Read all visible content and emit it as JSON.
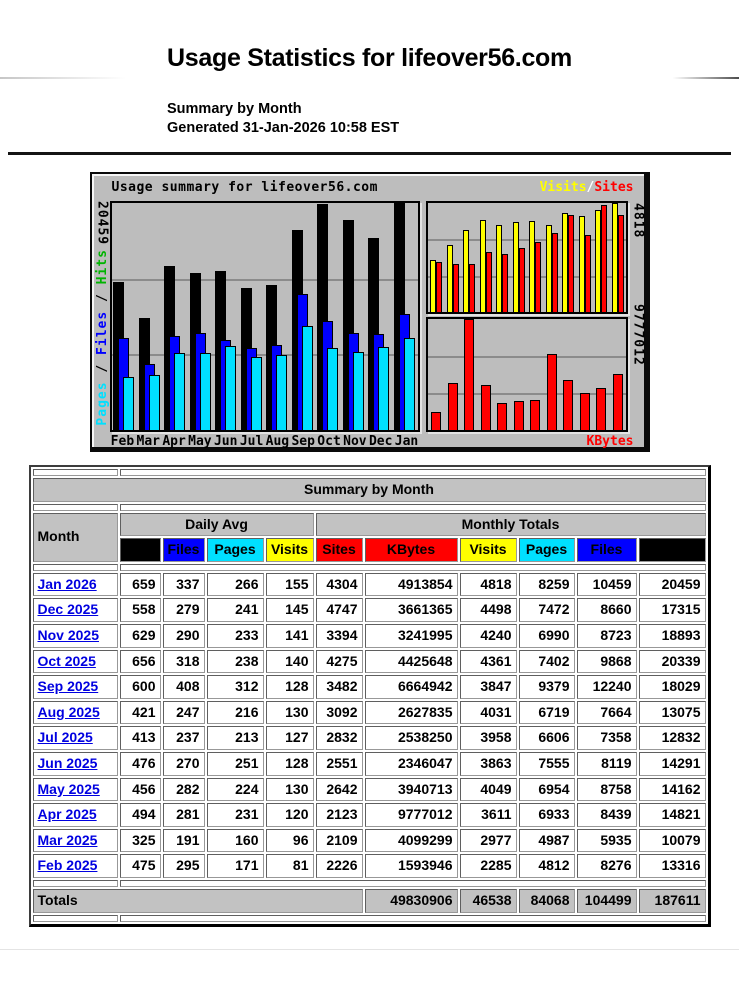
{
  "page": {
    "title": "Usage Statistics for lifeover56.com",
    "summary_line": "Summary by Month",
    "generated_line": "Generated 31-Jan-2026 10:58 EST"
  },
  "chart": {
    "title": "Usage summary for lifeover56.com",
    "legend": {
      "visits": "Visits",
      "separator": "/",
      "sites": "Sites"
    },
    "kbytes_label": "KBytes",
    "left_axis_max": "20459",
    "right_axis_top_max": "4818",
    "right_axis_bottom_max": "9777012",
    "left_axis_label_parts": {
      "pages": "Pages",
      "sep1": " / ",
      "files": "Files",
      "sep2": " / ",
      "hits": "Hits"
    },
    "colors": {
      "hits": "#000000",
      "files": "#0000ff",
      "pages": "#00e0ff",
      "visits": "#ffff00",
      "sites": "#ff0000",
      "kbytes": "#ff0000",
      "title": "#0000ff",
      "hits_label": "#00b400",
      "pages_label": "#00e0ff",
      "files_label": "#0000ff",
      "background": "#bdbdbd"
    }
  },
  "chart_data": [
    {
      "type": "bar",
      "title": "Usage summary for lifeover56.com",
      "categories": [
        "Feb",
        "Mar",
        "Apr",
        "May",
        "Jun",
        "Jul",
        "Aug",
        "Sep",
        "Oct",
        "Nov",
        "Dec",
        "Jan"
      ],
      "series": [
        {
          "name": "Hits",
          "color": "#000000",
          "values": [
            13316,
            10079,
            14821,
            14162,
            14291,
            12832,
            13075,
            18029,
            20339,
            18893,
            17315,
            20459
          ]
        },
        {
          "name": "Files",
          "color": "#0000ff",
          "values": [
            8276,
            5935,
            8439,
            8758,
            8119,
            7358,
            7664,
            12240,
            9868,
            8723,
            8660,
            10459
          ]
        },
        {
          "name": "Pages",
          "color": "#00e0ff",
          "values": [
            4812,
            4987,
            6933,
            6954,
            7555,
            6606,
            6719,
            9379,
            7402,
            6990,
            7472,
            8259
          ]
        }
      ],
      "ylabel": "Pages / Files / Hits",
      "ylim": [
        0,
        20459
      ],
      "legend_position": "left",
      "grid": true
    },
    {
      "type": "bar",
      "title": "Visits / Sites",
      "categories": [
        "Feb",
        "Mar",
        "Apr",
        "May",
        "Jun",
        "Jul",
        "Aug",
        "Sep",
        "Oct",
        "Nov",
        "Dec",
        "Jan"
      ],
      "series": [
        {
          "name": "Visits",
          "color": "#ffff00",
          "values": [
            2285,
            2977,
            3611,
            4049,
            3863,
            3958,
            4031,
            3847,
            4361,
            4240,
            4498,
            4818
          ]
        },
        {
          "name": "Sites",
          "color": "#ff0000",
          "values": [
            2226,
            2109,
            2123,
            2642,
            2551,
            2832,
            3092,
            3482,
            4275,
            3394,
            4747,
            4304
          ]
        }
      ],
      "ylim": [
        0,
        4818
      ],
      "legend_position": "top-right",
      "grid": true
    },
    {
      "type": "bar",
      "title": "KBytes",
      "categories": [
        "Feb",
        "Mar",
        "Apr",
        "May",
        "Jun",
        "Jul",
        "Aug",
        "Sep",
        "Oct",
        "Nov",
        "Dec",
        "Jan"
      ],
      "series": [
        {
          "name": "KBytes",
          "color": "#ff0000",
          "values": [
            1593946,
            4099299,
            9777012,
            3940713,
            2346047,
            2538250,
            2627835,
            6664942,
            4425648,
            3241995,
            3661365,
            4913854
          ]
        }
      ],
      "ylim": [
        0,
        9777012
      ],
      "legend_position": "bottom-right",
      "grid": true
    }
  ],
  "table": {
    "caption": "Summary by Month",
    "month_header": "Month",
    "daily_avg_header": "Daily Avg",
    "monthly_totals_header": "Monthly Totals",
    "sub_headers": [
      {
        "key": "hits",
        "label": "Hits"
      },
      {
        "key": "files",
        "label": "Files"
      },
      {
        "key": "pages",
        "label": "Pages"
      },
      {
        "key": "visits",
        "label": "Visits"
      },
      {
        "key": "sites",
        "label": "Sites"
      },
      {
        "key": "kbytes",
        "label": "KBytes"
      },
      {
        "key": "visits",
        "label": "Visits"
      },
      {
        "key": "pages",
        "label": "Pages"
      },
      {
        "key": "files",
        "label": "Files"
      },
      {
        "key": "hits",
        "label": "Hits"
      }
    ],
    "rows": [
      {
        "month": "Jan 2026",
        "values": [
          659,
          337,
          266,
          155,
          4304,
          4913854,
          4818,
          8259,
          10459,
          20459
        ]
      },
      {
        "month": "Dec 2025",
        "values": [
          558,
          279,
          241,
          145,
          4747,
          3661365,
          4498,
          7472,
          8660,
          17315
        ]
      },
      {
        "month": "Nov 2025",
        "values": [
          629,
          290,
          233,
          141,
          3394,
          3241995,
          4240,
          6990,
          8723,
          18893
        ]
      },
      {
        "month": "Oct 2025",
        "values": [
          656,
          318,
          238,
          140,
          4275,
          4425648,
          4361,
          7402,
          9868,
          20339
        ]
      },
      {
        "month": "Sep 2025",
        "values": [
          600,
          408,
          312,
          128,
          3482,
          6664942,
          3847,
          9379,
          12240,
          18029
        ]
      },
      {
        "month": "Aug 2025",
        "values": [
          421,
          247,
          216,
          130,
          3092,
          2627835,
          4031,
          6719,
          7664,
          13075
        ]
      },
      {
        "month": "Jul 2025",
        "values": [
          413,
          237,
          213,
          127,
          2832,
          2538250,
          3958,
          6606,
          7358,
          12832
        ]
      },
      {
        "month": "Jun 2025",
        "values": [
          476,
          270,
          251,
          128,
          2551,
          2346047,
          3863,
          7555,
          8119,
          14291
        ]
      },
      {
        "month": "May 2025",
        "values": [
          456,
          282,
          224,
          130,
          2642,
          3940713,
          4049,
          6954,
          8758,
          14162
        ]
      },
      {
        "month": "Apr 2025",
        "values": [
          494,
          281,
          231,
          120,
          2123,
          9777012,
          3611,
          6933,
          8439,
          14821
        ]
      },
      {
        "month": "Mar 2025",
        "values": [
          325,
          191,
          160,
          96,
          2109,
          4099299,
          2977,
          4987,
          5935,
          10079
        ]
      },
      {
        "month": "Feb 2025",
        "values": [
          475,
          295,
          171,
          81,
          2226,
          1593946,
          2285,
          4812,
          8276,
          13316
        ]
      }
    ],
    "totals_label": "Totals",
    "totals": [
      49830906,
      46538,
      84068,
      104499,
      187611
    ]
  }
}
